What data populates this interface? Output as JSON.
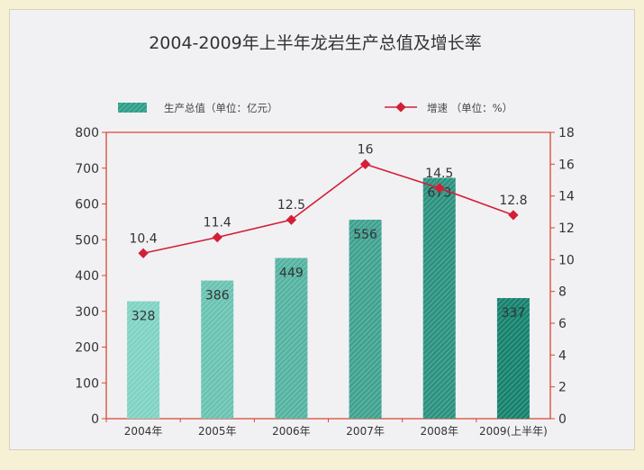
{
  "chart_data": {
    "type": "bar",
    "title": "2004-2009年上半年龙岩生产总值及增长率",
    "categories": [
      "2004年",
      "2005年",
      "2006年",
      "2007年",
      "2008年",
      "2009(上半年)"
    ],
    "series": [
      {
        "name": "生产总值（单位：亿元）",
        "type": "bar",
        "axis": "left",
        "values": [
          328,
          386,
          449,
          556,
          673,
          337
        ]
      },
      {
        "name": "增速 （单位：%）",
        "type": "line",
        "axis": "right",
        "values": [
          10.4,
          11.4,
          12.5,
          16,
          14.5,
          12.8
        ]
      }
    ],
    "y_left": {
      "range": [
        0,
        800
      ],
      "ticks": [
        0,
        100,
        200,
        300,
        400,
        500,
        600,
        700,
        800
      ]
    },
    "y_right": {
      "range": [
        0,
        18
      ],
      "ticks": [
        0,
        2,
        4,
        6,
        8,
        10,
        12,
        14,
        16,
        18
      ]
    },
    "bar_data_labels": [
      "328",
      "386",
      "449",
      "556",
      "673",
      "337"
    ],
    "line_data_labels": [
      "10.4",
      "11.4",
      "12.5",
      "16",
      "14.5",
      "12.8"
    ],
    "legend_position": "top",
    "grid": false,
    "colors": {
      "bars_light": "#7fd3c3",
      "bars_dark": "#16826e",
      "line": "#d21f36",
      "frame": "#d9472e"
    }
  }
}
